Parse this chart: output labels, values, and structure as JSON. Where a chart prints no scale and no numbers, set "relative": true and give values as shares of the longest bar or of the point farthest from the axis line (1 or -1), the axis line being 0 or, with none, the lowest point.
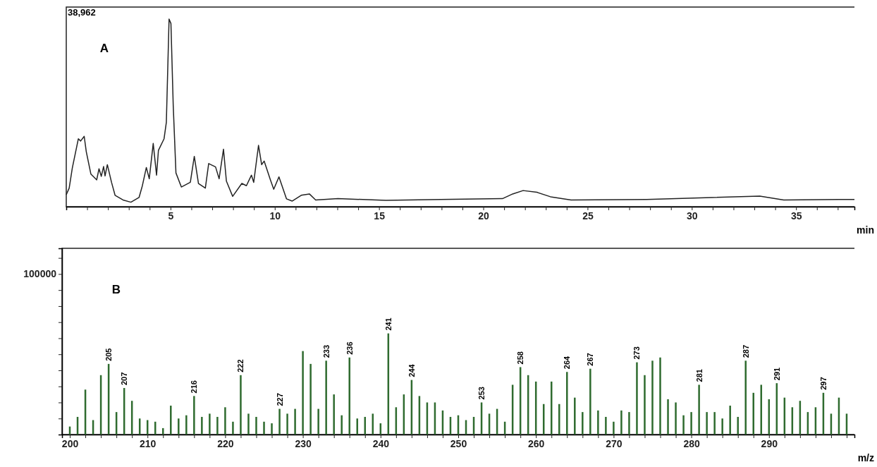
{
  "chart_data": [
    {
      "type": "line",
      "relative": true,
      "xlabel": "min",
      "color": "#222222",
      "annotations": [
        "38,962",
        "A"
      ],
      "xlim": [
        0,
        37.8
      ],
      "xticks": [
        {
          "value": 1,
          "label": null
        },
        {
          "value": 2,
          "label": null
        },
        {
          "value": 3,
          "label": null
        },
        {
          "value": 4,
          "label": null
        },
        5,
        {
          "value": 6,
          "label": null
        },
        {
          "value": 7,
          "label": null
        },
        {
          "value": 8,
          "label": null
        },
        {
          "value": 9,
          "label": null
        },
        10,
        {
          "value": 11,
          "label": null
        },
        {
          "value": 12,
          "label": null
        },
        {
          "value": 13,
          "label": null
        },
        {
          "value": 14,
          "label": null
        },
        15,
        {
          "value": 16,
          "label": null
        },
        {
          "value": 17,
          "label": null
        },
        {
          "value": 18,
          "label": null
        },
        {
          "value": 19,
          "label": null
        },
        20,
        {
          "value": 21,
          "label": null
        },
        {
          "value": 22,
          "label": null
        },
        {
          "value": 23,
          "label": null
        },
        {
          "value": 24,
          "label": null
        },
        25,
        {
          "value": 26,
          "label": null
        },
        {
          "value": 27,
          "label": null
        },
        {
          "value": 28,
          "label": null
        },
        {
          "value": 29,
          "label": null
        },
        30,
        {
          "value": 31,
          "label": null
        },
        {
          "value": 32,
          "label": null
        },
        {
          "value": 33,
          "label": null
        },
        {
          "value": 34,
          "label": null
        },
        35,
        {
          "value": 36,
          "label": null
        },
        {
          "value": 37,
          "label": null
        }
      ],
      "x": [
        0,
        0.14,
        0.29,
        0.58,
        0.69,
        0.86,
        0.96,
        1.18,
        1.46,
        1.57,
        1.68,
        1.79,
        1.86,
        1.97,
        2.17,
        2.34,
        2.72,
        3.1,
        3.49,
        3.65,
        3.84,
        3.98,
        4.17,
        4.33,
        4.42,
        4.69,
        4.8,
        4.93,
        5.02,
        5.13,
        5.26,
        5.52,
        5.95,
        6.14,
        6.34,
        6.67,
        6.83,
        7.16,
        7.33,
        7.54,
        7.68,
        7.98,
        8.42,
        8.64,
        8.88,
        8.99,
        9.22,
        9.37,
        9.49,
        9.79,
        9.95,
        10.2,
        10.56,
        10.83,
        11.27,
        11.66,
        11.96,
        13.03,
        15.33,
        17.96,
        20.92,
        21.41,
        21.91,
        22.57,
        23.22,
        24.21,
        27.83,
        33.26,
        34.41,
        37.04,
        37.8
      ],
      "values": [
        0.064,
        0.099,
        0.206,
        0.362,
        0.35,
        0.375,
        0.293,
        0.174,
        0.143,
        0.202,
        0.162,
        0.214,
        0.164,
        0.224,
        0.13,
        0.061,
        0.036,
        0.024,
        0.049,
        0.112,
        0.209,
        0.149,
        0.337,
        0.168,
        0.3,
        0.362,
        0.45,
        1,
        0.976,
        0.538,
        0.18,
        0.105,
        0.13,
        0.268,
        0.124,
        0.099,
        0.23,
        0.212,
        0.149,
        0.306,
        0.136,
        0.055,
        0.124,
        0.112,
        0.168,
        0.13,
        0.327,
        0.224,
        0.243,
        0.143,
        0.093,
        0.159,
        0.042,
        0.03,
        0.061,
        0.068,
        0.036,
        0.043,
        0.034,
        0.039,
        0.043,
        0.068,
        0.086,
        0.077,
        0.053,
        0.036,
        0.039,
        0.056,
        0.036,
        0.039,
        0.039
      ]
    },
    {
      "type": "bar",
      "xlabel": "m/z",
      "color": "#2f6b2f",
      "xlim": [
        199,
        301
      ],
      "ylim": [
        0,
        116000
      ],
      "yticks": [
        {
          "value": 10000,
          "label": null
        },
        {
          "value": 20000,
          "label": null
        },
        {
          "value": 30000,
          "label": null
        },
        {
          "value": 40000,
          "label": null
        },
        {
          "value": 50000,
          "label": null
        },
        {
          "value": 60000,
          "label": null
        },
        {
          "value": 70000,
          "label": null
        },
        {
          "value": 80000,
          "label": null
        },
        {
          "value": 90000,
          "label": null
        },
        100000,
        {
          "value": 110000,
          "label": null
        }
      ],
      "annotations": [
        "B",
        {
          "text": "205",
          "x": 205,
          "y": 44000
        },
        {
          "text": "207",
          "x": 207,
          "y": 29000
        },
        {
          "text": "216",
          "x": 216,
          "y": 24000
        },
        {
          "text": "222",
          "x": 222,
          "y": 37000
        },
        {
          "text": "227",
          "x": 227,
          "y": 16000
        },
        {
          "text": "233",
          "x": 233,
          "y": 46000
        },
        {
          "text": "236",
          "x": 236,
          "y": 48000
        },
        {
          "text": "241",
          "x": 241,
          "y": 63000
        },
        {
          "text": "244",
          "x": 244,
          "y": 34000
        },
        {
          "text": "253",
          "x": 253,
          "y": 20000
        },
        {
          "text": "258",
          "x": 258,
          "y": 42000
        },
        {
          "text": "264",
          "x": 264,
          "y": 39000
        },
        {
          "text": "267",
          "x": 267,
          "y": 41000
        },
        {
          "text": "273",
          "x": 273,
          "y": 45000
        },
        {
          "text": "281",
          "x": 281,
          "y": 31000
        },
        {
          "text": "287",
          "x": 287,
          "y": 46000
        },
        {
          "text": "291",
          "x": 291,
          "y": 32000
        },
        {
          "text": "297",
          "x": 297,
          "y": 26000
        }
      ],
      "xticks": [
        200,
        {
          "value": 202,
          "label": null
        },
        {
          "value": 204,
          "label": null
        },
        {
          "value": 206,
          "label": null
        },
        {
          "value": 208,
          "label": null
        },
        210,
        {
          "value": 212,
          "label": null
        },
        {
          "value": 214,
          "label": null
        },
        {
          "value": 216,
          "label": null
        },
        {
          "value": 218,
          "label": null
        },
        220,
        {
          "value": 222,
          "label": null
        },
        {
          "value": 224,
          "label": null
        },
        {
          "value": 226,
          "label": null
        },
        {
          "value": 228,
          "label": null
        },
        230,
        {
          "value": 232,
          "label": null
        },
        {
          "value": 234,
          "label": null
        },
        {
          "value": 236,
          "label": null
        },
        {
          "value": 238,
          "label": null
        },
        240,
        {
          "value": 242,
          "label": null
        },
        {
          "value": 244,
          "label": null
        },
        {
          "value": 246,
          "label": null
        },
        {
          "value": 248,
          "label": null
        },
        250,
        {
          "value": 252,
          "label": null
        },
        {
          "value": 254,
          "label": null
        },
        {
          "value": 256,
          "label": null
        },
        {
          "value": 258,
          "label": null
        },
        260,
        {
          "value": 262,
          "label": null
        },
        {
          "value": 264,
          "label": null
        },
        {
          "value": 266,
          "label": null
        },
        {
          "value": 268,
          "label": null
        },
        270,
        {
          "value": 272,
          "label": null
        },
        {
          "value": 274,
          "label": null
        },
        {
          "value": 276,
          "label": null
        },
        {
          "value": 278,
          "label": null
        },
        280,
        {
          "value": 282,
          "label": null
        },
        {
          "value": 284,
          "label": null
        },
        {
          "value": 286,
          "label": null
        },
        {
          "value": 288,
          "label": null
        },
        290,
        {
          "value": 292,
          "label": null
        },
        {
          "value": 294,
          "label": null
        },
        {
          "value": 296,
          "label": null
        },
        {
          "value": 298,
          "label": null
        },
        {
          "value": 300,
          "label": null
        }
      ],
      "x": [
        200,
        201,
        202,
        203,
        204,
        205,
        206,
        207,
        208,
        209,
        210,
        211,
        212,
        213,
        214,
        215,
        216,
        217,
        218,
        219,
        220,
        221,
        222,
        223,
        224,
        225,
        226,
        227,
        228,
        229,
        230,
        231,
        232,
        233,
        234,
        235,
        236,
        237,
        238,
        239,
        240,
        241,
        242,
        243,
        244,
        245,
        246,
        247,
        248,
        249,
        250,
        251,
        252,
        253,
        254,
        255,
        256,
        257,
        258,
        259,
        260,
        261,
        262,
        263,
        264,
        265,
        266,
        267,
        268,
        269,
        270,
        271,
        272,
        273,
        274,
        275,
        276,
        277,
        278,
        279,
        280,
        281,
        282,
        283,
        284,
        285,
        286,
        287,
        288,
        289,
        290,
        291,
        292,
        293,
        294,
        295,
        296,
        297,
        298,
        299,
        300
      ],
      "values": [
        5000,
        11000,
        28000,
        9000,
        37000,
        44000,
        14000,
        29000,
        21000,
        10000,
        9000,
        8000,
        4000,
        18000,
        10000,
        12000,
        24000,
        11000,
        13000,
        11000,
        17000,
        8000,
        37000,
        13000,
        11000,
        8000,
        7000,
        16000,
        13000,
        16000,
        52000,
        44000,
        16000,
        46000,
        25000,
        12000,
        48000,
        10000,
        11000,
        13000,
        7000,
        63000,
        17000,
        25000,
        34000,
        24000,
        20000,
        20000,
        15000,
        11000,
        12000,
        9000,
        11000,
        20000,
        13000,
        16000,
        8000,
        31000,
        42000,
        37000,
        33000,
        19000,
        33000,
        19000,
        39000,
        23000,
        14000,
        41000,
        15000,
        11000,
        8000,
        15000,
        14000,
        45000,
        37000,
        46000,
        48000,
        22000,
        20000,
        12000,
        14000,
        31000,
        14000,
        14000,
        10000,
        18000,
        11000,
        46000,
        26000,
        31000,
        22000,
        32000,
        23000,
        17000,
        21000,
        14000,
        17000,
        26000,
        13000,
        23000,
        13000
      ]
    }
  ]
}
